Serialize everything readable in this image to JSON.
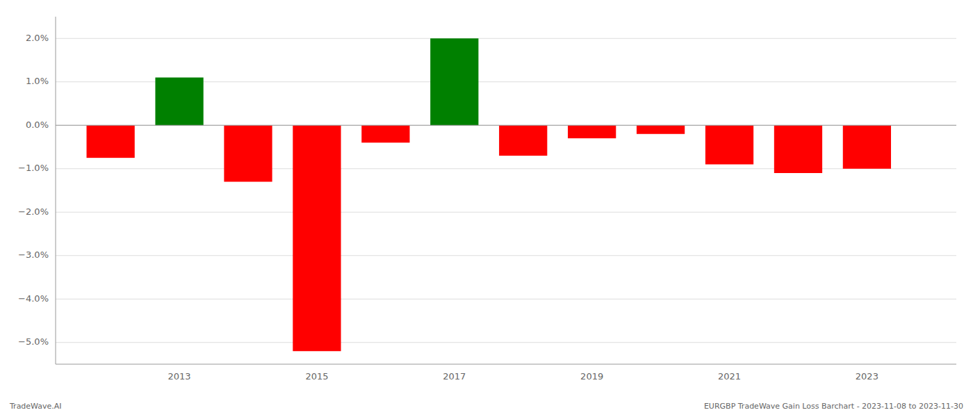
{
  "chart_data": {
    "type": "bar",
    "x": [
      2012,
      2013,
      2014,
      2015,
      2016,
      2017,
      2018,
      2019,
      2020,
      2021,
      2022,
      2023
    ],
    "values": [
      -0.0075,
      0.011,
      -0.013,
      -0.052,
      -0.004,
      0.02,
      -0.007,
      -0.003,
      -0.002,
      -0.009,
      -0.011,
      -0.01
    ],
    "colors": [
      "#ff0000",
      "#008000",
      "#ff0000",
      "#ff0000",
      "#ff0000",
      "#008000",
      "#ff0000",
      "#ff0000",
      "#ff0000",
      "#ff0000",
      "#ff0000",
      "#ff0000"
    ],
    "xlim": [
      2011.2,
      2024.3
    ],
    "xticks": [
      2013,
      2015,
      2017,
      2019,
      2021,
      2023
    ],
    "ylim": [
      -0.055,
      0.025
    ],
    "yticks": [
      {
        "value": -0.05,
        "label": "−5.0%"
      },
      {
        "value": -0.04,
        "label": "−4.0%"
      },
      {
        "value": -0.03,
        "label": "−3.0%"
      },
      {
        "value": -0.02,
        "label": "−2.0%"
      },
      {
        "value": -0.01,
        "label": "−1.0%"
      },
      {
        "value": 0.0,
        "label": "0.0%"
      },
      {
        "value": 0.01,
        "label": "1.0%"
      },
      {
        "value": 0.02,
        "label": "2.0%"
      }
    ],
    "grid": true,
    "annotations": [
      "TradeWave.AI",
      "EURGBP TradeWave Gain Loss Barchart - 2023-11-08 to 2023-11-30"
    ]
  }
}
